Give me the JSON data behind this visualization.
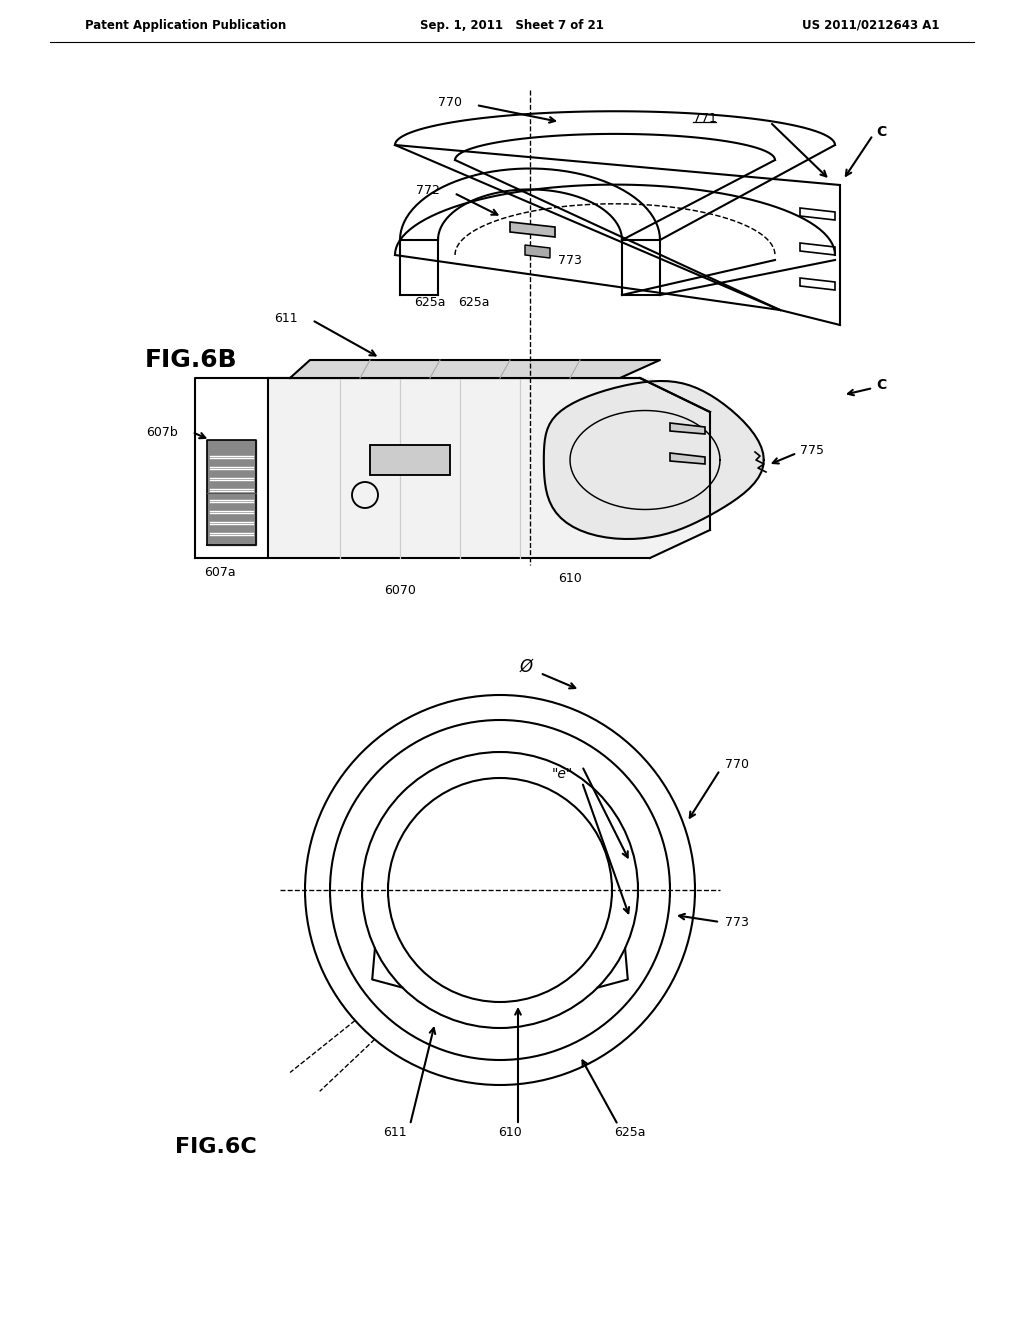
{
  "bg_color": "#ffffff",
  "title_left": "Patent Application Publication",
  "title_center": "Sep. 1, 2011   Sheet 7 of 21",
  "title_right": "US 2011/0212643 A1",
  "fig6b_label": "FIG.6B",
  "fig6c_label": "FIG.6C",
  "labels": {
    "770_top": "770",
    "771": "771",
    "772": "772",
    "773": "773",
    "625a_top": "625a",
    "611": "611",
    "610_mid": "610",
    "775": "775",
    "6070": "6070",
    "607b": "607b",
    "607a": "607a",
    "C_top": "C",
    "C_mid": "C",
    "phi": "Ø",
    "theta": "\"e\"",
    "770_bot": "770",
    "773_bot": "773",
    "611_bot": "611",
    "610_bot": "610",
    "625a_bot": "625a"
  },
  "line_color": "#000000",
  "line_width": 1.5,
  "dashed_color": "#000000"
}
